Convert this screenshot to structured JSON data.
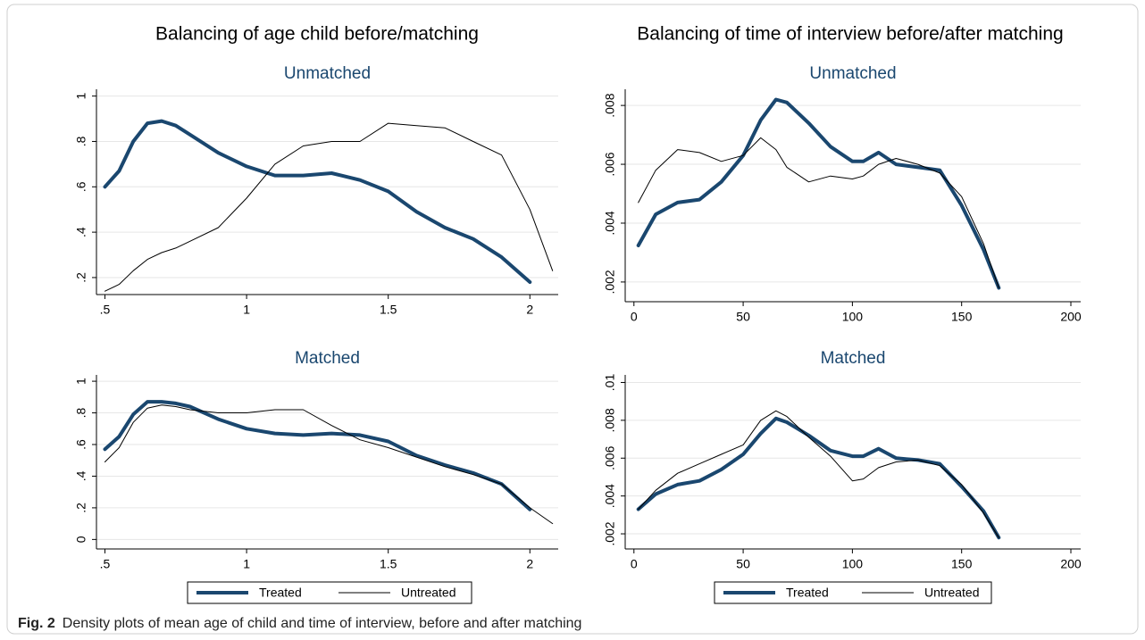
{
  "column_titles": [
    "Balancing of age child before/matching",
    "Balancing of time of interview before/after matching"
  ],
  "caption": {
    "label": "Fig. 2",
    "text": "Density plots of mean age of child and time of interview, before and after matching"
  },
  "chart_data": [
    {
      "type": "line",
      "title": "Unmatched",
      "x": [
        0.5,
        0.55,
        0.6,
        0.65,
        0.7,
        0.75,
        0.8,
        0.9,
        1,
        1.1,
        1.2,
        1.3,
        1.4,
        1.5,
        1.6,
        1.7,
        1.8,
        1.9,
        2,
        2.08
      ],
      "series": [
        {
          "color": "#1a476f",
          "values": [
            0.6,
            0.67,
            0.8,
            0.88,
            0.89,
            0.87,
            0.83,
            0.75,
            0.69,
            0.65,
            0.65,
            0.66,
            0.63,
            0.58,
            0.49,
            0.42,
            0.37,
            0.29,
            0.18,
            null
          ]
        },
        {
          "color": "#000000",
          "values": [
            0.14,
            0.17,
            0.23,
            0.28,
            0.31,
            0.33,
            0.36,
            0.42,
            0.55,
            0.7,
            0.78,
            0.8,
            0.8,
            0.88,
            0.87,
            0.86,
            0.8,
            0.74,
            0.5,
            0.23
          ]
        }
      ],
      "xlim": [
        0.47,
        2.1
      ],
      "xticks": [
        {
          "value": 0.5,
          "label": ".5"
        },
        1,
        1.5,
        2
      ],
      "ylim": [
        0.125,
        1.03
      ],
      "yticks": [
        {
          "value": 0.2,
          "label": ".2"
        },
        {
          "value": 0.4,
          "label": ".4"
        },
        {
          "value": 0.6,
          "label": ".6"
        },
        {
          "value": 0.8,
          "label": ".8"
        },
        1
      ],
      "grid": true
    },
    {
      "type": "line",
      "title": "Matched",
      "x": [
        0.5,
        0.55,
        0.6,
        0.65,
        0.7,
        0.75,
        0.8,
        0.9,
        1,
        1.1,
        1.2,
        1.3,
        1.4,
        1.5,
        1.6,
        1.7,
        1.8,
        1.9,
        2,
        2.08
      ],
      "series": [
        {
          "name": "Treated",
          "color": "#1a476f",
          "values": [
            0.57,
            0.65,
            0.79,
            0.87,
            0.87,
            0.86,
            0.84,
            0.76,
            0.7,
            0.67,
            0.66,
            0.67,
            0.66,
            0.62,
            0.53,
            0.47,
            0.42,
            0.35,
            0.19,
            null
          ]
        },
        {
          "name": "Untreated",
          "color": "#000000",
          "values": [
            0.49,
            0.58,
            0.74,
            0.83,
            0.85,
            0.84,
            0.82,
            0.8,
            0.8,
            0.82,
            0.82,
            0.72,
            0.63,
            0.58,
            0.52,
            0.46,
            0.41,
            0.35,
            0.2,
            0.1
          ]
        }
      ],
      "xlim": [
        0.47,
        2.1
      ],
      "xticks": [
        {
          "value": 0.5,
          "label": ".5"
        },
        1,
        1.5,
        2
      ],
      "ylim": [
        -0.06,
        1.04
      ],
      "yticks": [
        0,
        {
          "value": 0.2,
          "label": ".2"
        },
        {
          "value": 0.4,
          "label": ".4"
        },
        {
          "value": 0.6,
          "label": ".6"
        },
        {
          "value": 0.8,
          "label": ".8"
        },
        1
      ],
      "grid": true,
      "legend": "bottom"
    },
    {
      "type": "line",
      "title": "Unmatched",
      "x": [
        2,
        10,
        20,
        30,
        40,
        50,
        58,
        65,
        70,
        80,
        90,
        100,
        105,
        112,
        120,
        130,
        140,
        150,
        160,
        167
      ],
      "series": [
        {
          "color": "#1a476f",
          "values": [
            0.00324,
            0.0043,
            0.0047,
            0.0048,
            0.0054,
            0.0063,
            0.0075,
            0.0082,
            0.0081,
            0.0074,
            0.0066,
            0.0061,
            0.0061,
            0.0064,
            0.006,
            0.0059,
            0.0058,
            0.0046,
            0.0031,
            0.0018
          ]
        },
        {
          "color": "#000000",
          "values": [
            0.0047,
            0.0058,
            0.0065,
            0.0064,
            0.0061,
            0.0063,
            0.0069,
            0.0065,
            0.0059,
            0.0054,
            0.0056,
            0.0055,
            0.0056,
            0.006,
            0.0062,
            0.006,
            0.0057,
            0.0049,
            0.0033,
            0.0018
          ]
        }
      ],
      "xlim": [
        -4,
        204.5
      ],
      "xticks": [
        0,
        50,
        100,
        150,
        200
      ],
      "ylim": [
        0.00133,
        0.00855
      ],
      "yticks": [
        {
          "value": 0.002,
          "label": ".002"
        },
        {
          "value": 0.004,
          "label": ".004"
        },
        {
          "value": 0.006,
          "label": ".006"
        },
        {
          "value": 0.008,
          "label": ".008"
        }
      ],
      "grid": true
    },
    {
      "type": "line",
      "title": "Matched",
      "x": [
        2,
        10,
        20,
        30,
        40,
        50,
        58,
        65,
        70,
        80,
        90,
        100,
        105,
        112,
        120,
        130,
        140,
        150,
        160,
        167
      ],
      "series": [
        {
          "name": "Treated",
          "color": "#1a476f",
          "values": [
            0.0033,
            0.0041,
            0.0046,
            0.0048,
            0.0054,
            0.0062,
            0.0073,
            0.0081,
            0.0079,
            0.0072,
            0.0064,
            0.0061,
            0.0061,
            0.0065,
            0.006,
            0.0059,
            0.0057,
            0.0045,
            0.0032,
            0.0018
          ]
        },
        {
          "name": "Untreated",
          "color": "#000000",
          "values": [
            0.0033,
            0.0043,
            0.0052,
            0.0057,
            0.0062,
            0.0067,
            0.008,
            0.0085,
            0.0082,
            0.0071,
            0.0061,
            0.0048,
            0.0049,
            0.0055,
            0.0058,
            0.0059,
            0.0056,
            0.0046,
            0.0031,
            0.0018
          ]
        }
      ],
      "xlim": [
        -4,
        204.5
      ],
      "xticks": [
        0,
        50,
        100,
        150,
        200
      ],
      "ylim": [
        0.0012,
        0.0104
      ],
      "yticks": [
        {
          "value": 0.002,
          "label": ".002"
        },
        {
          "value": 0.004,
          "label": ".004"
        },
        {
          "value": 0.006,
          "label": ".006"
        },
        {
          "value": 0.008,
          "label": ".008"
        },
        {
          "value": 0.01,
          "label": ".01"
        }
      ],
      "grid": true,
      "legend": "bottom"
    }
  ]
}
